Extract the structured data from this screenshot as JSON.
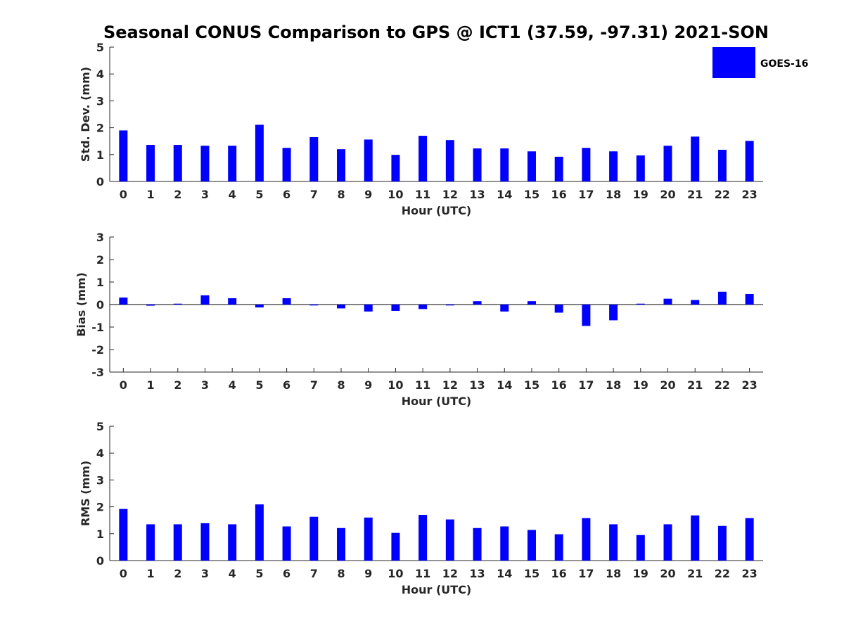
{
  "chart_data": {
    "type": "bar",
    "title": "Seasonal CONUS Comparison to GPS @ ICT1 (37.59, -97.31) 2021-SON",
    "legend": {
      "label": "GOES-16",
      "placement": "top-right"
    },
    "colors": {
      "bar": "#0000ff",
      "axis": "#262626",
      "zero_line": "#000000"
    },
    "categories": [
      "0",
      "1",
      "2",
      "3",
      "4",
      "5",
      "6",
      "7",
      "8",
      "9",
      "10",
      "11",
      "12",
      "13",
      "14",
      "15",
      "16",
      "17",
      "18",
      "19",
      "20",
      "21",
      "22",
      "23"
    ],
    "panels": [
      {
        "id": "std",
        "ylabel": "Std. Dev. (mm)",
        "xlabel": "Hour (UTC)",
        "ylim": [
          0,
          5
        ],
        "yticks": [
          0,
          1,
          2,
          3,
          4,
          5
        ],
        "series": [
          {
            "name": "GOES-16",
            "values": [
              1.9,
              1.36,
              1.36,
              1.33,
              1.33,
              2.11,
              1.25,
              1.65,
              1.2,
              1.56,
              0.99,
              1.7,
              1.54,
              1.23,
              1.23,
              1.12,
              0.92,
              1.25,
              1.12,
              0.97,
              1.33,
              1.67,
              1.18,
              1.51
            ]
          }
        ]
      },
      {
        "id": "bias",
        "ylabel": "Bias (mm)",
        "xlabel": "Hour (UTC)",
        "ylim": [
          -3,
          3
        ],
        "yticks": [
          -3,
          -2,
          -1,
          0,
          1,
          2,
          3
        ],
        "zero_line": true,
        "series": [
          {
            "name": "GOES-16",
            "values": [
              0.31,
              -0.05,
              0.04,
              0.41,
              0.28,
              -0.13,
              0.28,
              -0.04,
              -0.17,
              -0.31,
              -0.28,
              -0.2,
              -0.04,
              0.15,
              -0.31,
              0.15,
              -0.36,
              -0.95,
              -0.7,
              0.04,
              0.26,
              0.2,
              0.57,
              0.47
            ]
          }
        ]
      },
      {
        "id": "rms",
        "ylabel": "RMS (mm)",
        "xlabel": "Hour (UTC)",
        "ylim": [
          0,
          5
        ],
        "yticks": [
          0,
          1,
          2,
          3,
          4,
          5
        ],
        "series": [
          {
            "name": "GOES-16",
            "values": [
              1.92,
              1.35,
              1.35,
              1.39,
              1.35,
              2.09,
              1.27,
              1.63,
              1.21,
              1.6,
              1.03,
              1.7,
              1.53,
              1.21,
              1.27,
              1.14,
              0.98,
              1.58,
              1.35,
              0.95,
              1.35,
              1.68,
              1.29,
              1.58
            ]
          }
        ]
      }
    ]
  }
}
